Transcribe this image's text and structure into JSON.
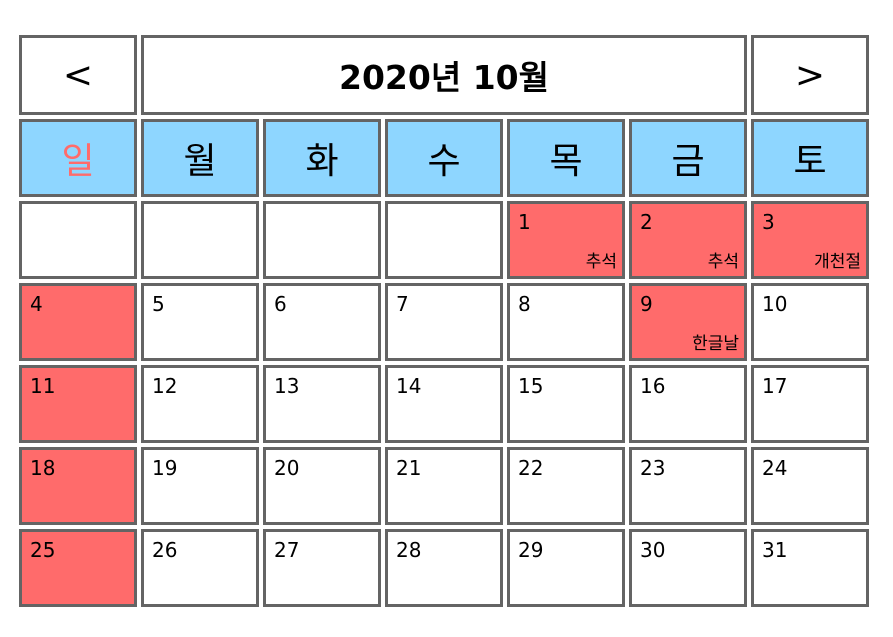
{
  "calendar": {
    "title": "2020년 10월",
    "prev_label": "<",
    "next_label": ">",
    "weekdays": [
      "일",
      "월",
      "화",
      "수",
      "목",
      "금",
      "토"
    ],
    "weekday_colors": {
      "sunday": "#ff6b6b",
      "header_bg": "#8ed6ff"
    },
    "holiday_color": "#ff6b6b",
    "weeks": [
      [
        {
          "day": "",
          "holiday": "",
          "red": false
        },
        {
          "day": "",
          "holiday": "",
          "red": false
        },
        {
          "day": "",
          "holiday": "",
          "red": false
        },
        {
          "day": "",
          "holiday": "",
          "red": false
        },
        {
          "day": "1",
          "holiday": "추석",
          "red": true
        },
        {
          "day": "2",
          "holiday": "추석",
          "red": true
        },
        {
          "day": "3",
          "holiday": "개천절",
          "red": true
        }
      ],
      [
        {
          "day": "4",
          "holiday": "",
          "red": true
        },
        {
          "day": "5",
          "holiday": "",
          "red": false
        },
        {
          "day": "6",
          "holiday": "",
          "red": false
        },
        {
          "day": "7",
          "holiday": "",
          "red": false
        },
        {
          "day": "8",
          "holiday": "",
          "red": false
        },
        {
          "day": "9",
          "holiday": "한글날",
          "red": true
        },
        {
          "day": "10",
          "holiday": "",
          "red": false
        }
      ],
      [
        {
          "day": "11",
          "holiday": "",
          "red": true
        },
        {
          "day": "12",
          "holiday": "",
          "red": false
        },
        {
          "day": "13",
          "holiday": "",
          "red": false
        },
        {
          "day": "14",
          "holiday": "",
          "red": false
        },
        {
          "day": "15",
          "holiday": "",
          "red": false
        },
        {
          "day": "16",
          "holiday": "",
          "red": false
        },
        {
          "day": "17",
          "holiday": "",
          "red": false
        }
      ],
      [
        {
          "day": "18",
          "holiday": "",
          "red": true
        },
        {
          "day": "19",
          "holiday": "",
          "red": false
        },
        {
          "day": "20",
          "holiday": "",
          "red": false
        },
        {
          "day": "21",
          "holiday": "",
          "red": false
        },
        {
          "day": "22",
          "holiday": "",
          "red": false
        },
        {
          "day": "23",
          "holiday": "",
          "red": false
        },
        {
          "day": "24",
          "holiday": "",
          "red": false
        }
      ],
      [
        {
          "day": "25",
          "holiday": "",
          "red": true
        },
        {
          "day": "26",
          "holiday": "",
          "red": false
        },
        {
          "day": "27",
          "holiday": "",
          "red": false
        },
        {
          "day": "28",
          "holiday": "",
          "red": false
        },
        {
          "day": "29",
          "holiday": "",
          "red": false
        },
        {
          "day": "30",
          "holiday": "",
          "red": false
        },
        {
          "day": "31",
          "holiday": "",
          "red": false
        }
      ]
    ]
  }
}
